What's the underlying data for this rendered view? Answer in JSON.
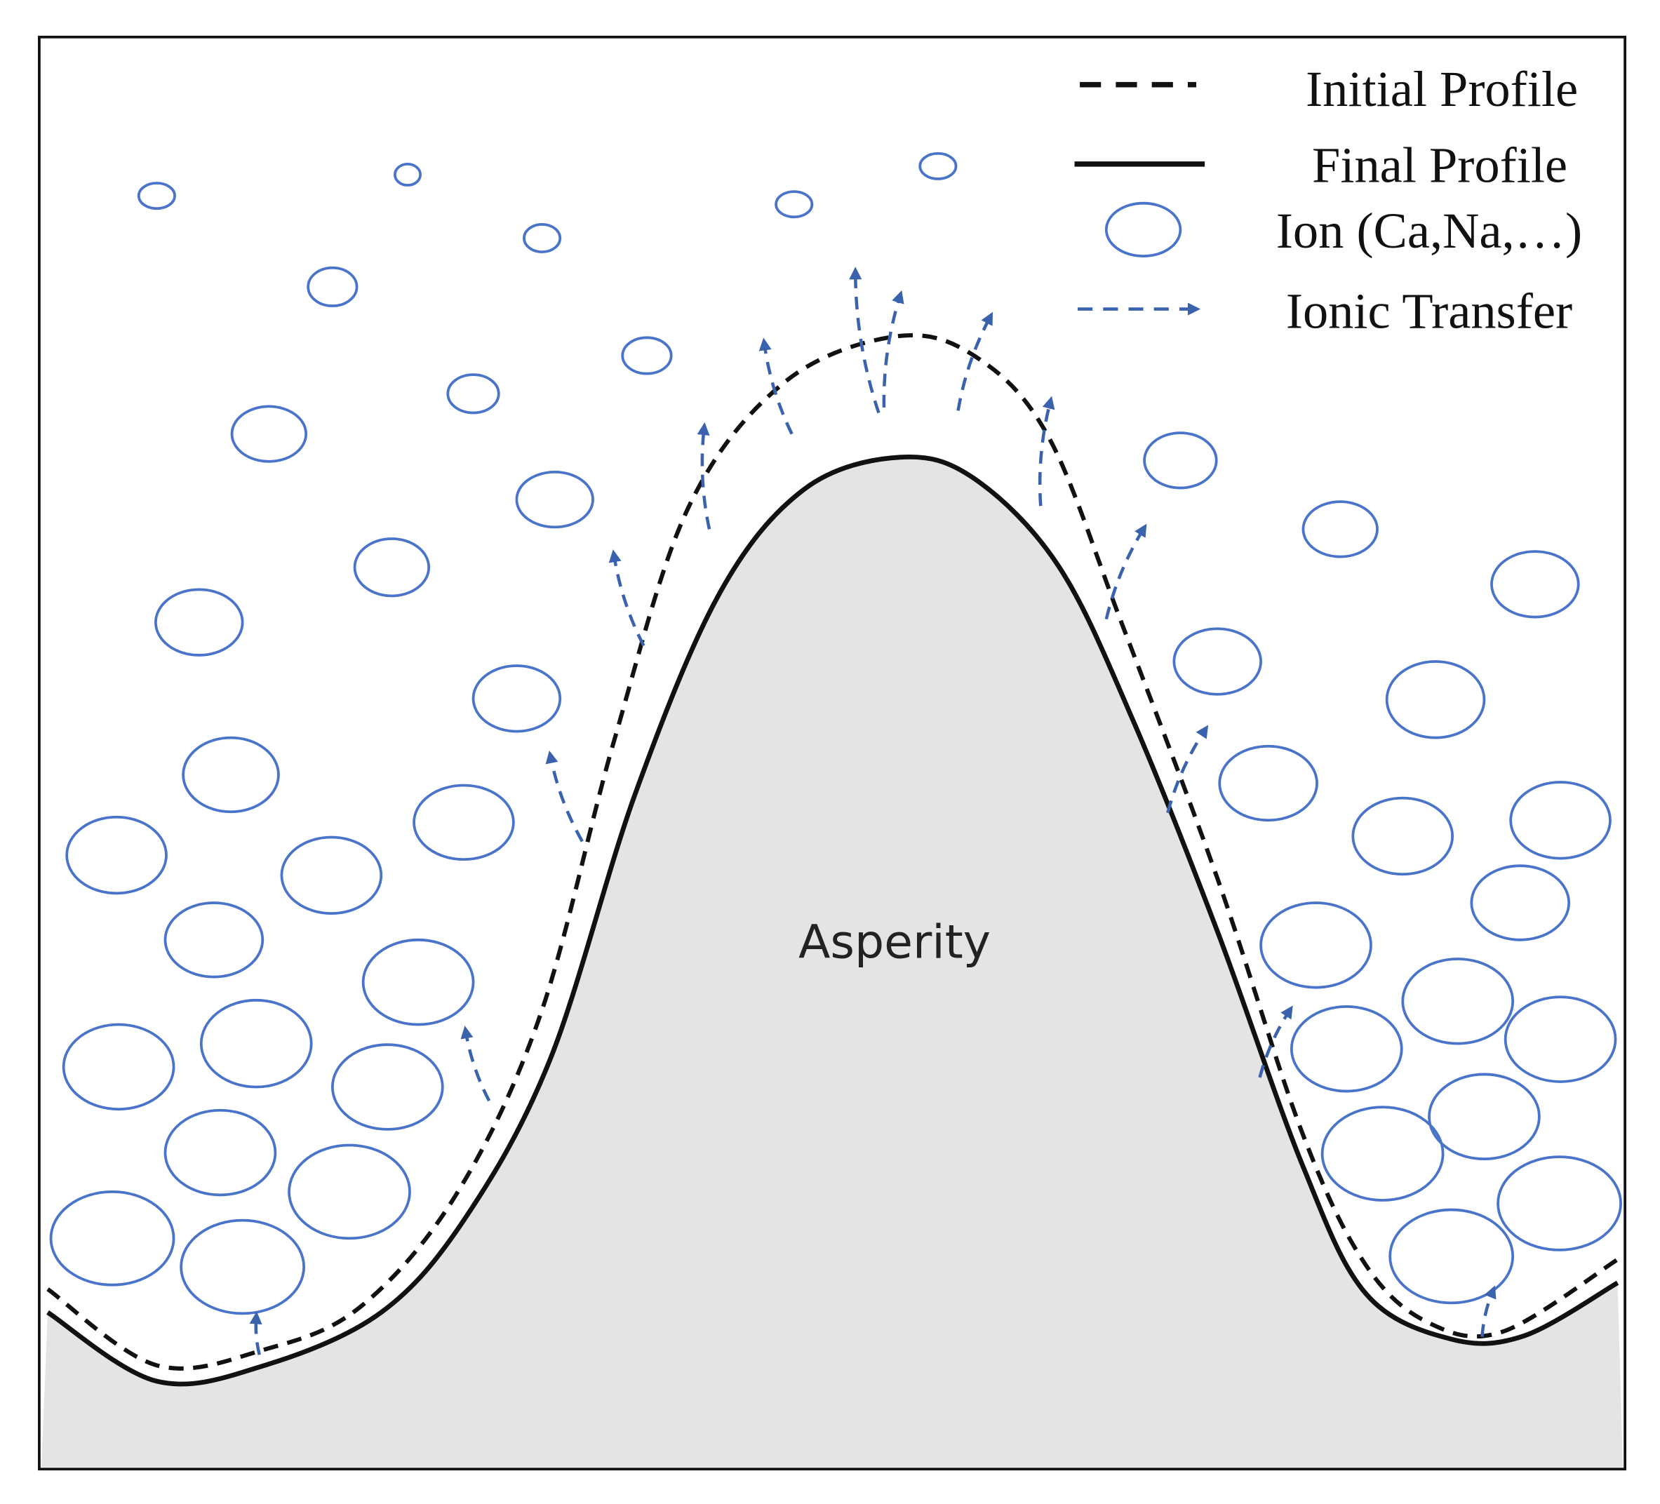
{
  "legend": {
    "items": [
      "Initial Profile",
      "Final Profile",
      "Ion (Ca,Na,…)",
      "Ionic Transfer"
    ]
  },
  "label": "Asperity"
}
